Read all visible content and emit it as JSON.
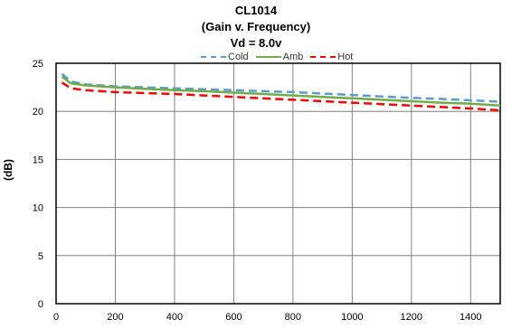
{
  "chart_data": {
    "type": "line",
    "title_lines": [
      "CL1014",
      "(Gain v. Frequency)",
      "Vd = 8.0v"
    ],
    "xlabel": "",
    "ylabel": "(dB)",
    "xlim": [
      0,
      1500
    ],
    "ylim": [
      0,
      25
    ],
    "xticks": [
      0,
      200,
      400,
      600,
      800,
      1000,
      1200,
      1400
    ],
    "yticks": [
      0,
      5,
      10,
      15,
      20,
      25
    ],
    "grid": true,
    "legend_position": "top",
    "series": [
      {
        "name": "Cold",
        "color": "#5b9bd5",
        "dash": "dashed",
        "x": [
          20,
          50,
          100,
          200,
          300,
          400,
          500,
          600,
          700,
          800,
          900,
          1000,
          1100,
          1200,
          1300,
          1400,
          1500
        ],
        "y": [
          23.9,
          23.1,
          22.8,
          22.6,
          22.5,
          22.4,
          22.3,
          22.2,
          22.1,
          22.0,
          21.85,
          21.7,
          21.55,
          21.4,
          21.3,
          21.15,
          21.0
        ]
      },
      {
        "name": "Amb",
        "color": "#70ad47",
        "dash": "solid",
        "x": [
          20,
          50,
          100,
          200,
          300,
          400,
          500,
          600,
          700,
          800,
          900,
          1000,
          1100,
          1200,
          1300,
          1400,
          1500
        ],
        "y": [
          23.6,
          22.9,
          22.7,
          22.5,
          22.35,
          22.2,
          22.1,
          21.95,
          21.8,
          21.65,
          21.5,
          21.35,
          21.2,
          21.05,
          20.9,
          20.8,
          20.6
        ]
      },
      {
        "name": "Hot",
        "color": "#ff0000",
        "dash": "dashed",
        "x": [
          20,
          50,
          100,
          200,
          300,
          400,
          500,
          600,
          700,
          800,
          900,
          1000,
          1100,
          1200,
          1300,
          1400,
          1500
        ],
        "y": [
          23.0,
          22.4,
          22.2,
          22.0,
          21.9,
          21.8,
          21.65,
          21.5,
          21.35,
          21.2,
          21.05,
          20.9,
          20.75,
          20.6,
          20.45,
          20.3,
          20.1
        ]
      }
    ]
  }
}
